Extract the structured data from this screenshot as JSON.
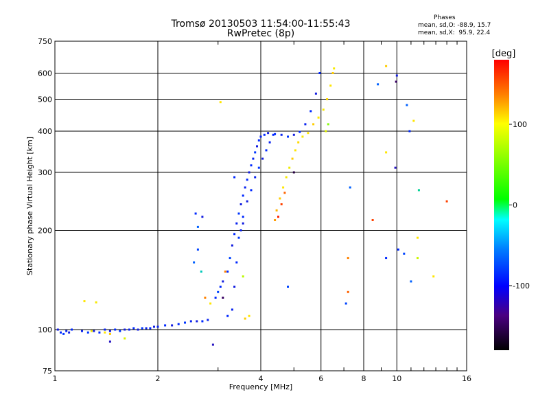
{
  "title_line1": "Tromsø 20130503 11:54:00-11:55:43",
  "title_line2": "RwPretec (8p)",
  "phases": {
    "title": "Phases",
    "mean_o": "mean, sd,O: -88.9, 15.7",
    "mean_x": "mean, sd,X:  95.9, 22.4"
  },
  "colorbar": {
    "label": "[deg]",
    "ticks": [
      {
        "value": 100,
        "label": "100"
      },
      {
        "value": 0,
        "label": "0"
      },
      {
        "value": -100,
        "label": "-100"
      }
    ],
    "range": [
      -180,
      180
    ]
  },
  "chart_data": {
    "type": "scatter",
    "title": "Tromsø 20130503 11:54:00-11:55:43",
    "subtitle": "RwPretec (8p)",
    "xlabel": "Frequency [MHz]",
    "ylabel": "Stationary phase Virtual Height [km]",
    "x_scale": "log",
    "y_scale": "log",
    "xlim": [
      1,
      16
    ],
    "ylim": [
      75,
      750
    ],
    "x_ticks": [
      1,
      2,
      4,
      6,
      8,
      10,
      16
    ],
    "x_tick_labels": [
      "1",
      "2",
      "4",
      "6",
      "8",
      "10",
      "16"
    ],
    "y_ticks": [
      75,
      100,
      200,
      300,
      400,
      500,
      600,
      750
    ],
    "y_tick_labels": [
      "75",
      "100",
      "200",
      "300",
      "400",
      "500",
      "600",
      "750"
    ],
    "grid": true,
    "color_scale": "phase [deg], rainbow from -180 (black) through -100 (blue), 0 (green), 100 (yellow) to 180 (red)",
    "points": [
      [
        1.02,
        100,
        -110
      ],
      [
        1.04,
        98,
        -100
      ],
      [
        1.06,
        97,
        -95
      ],
      [
        1.08,
        99,
        -105
      ],
      [
        1.1,
        98,
        -110
      ],
      [
        1.12,
        100,
        -100
      ],
      [
        1.2,
        99,
        -105
      ],
      [
        1.25,
        98,
        -95
      ],
      [
        1.3,
        99,
        -110
      ],
      [
        1.35,
        98,
        -100
      ],
      [
        1.4,
        100,
        -105
      ],
      [
        1.45,
        99,
        -110
      ],
      [
        1.5,
        100,
        -100
      ],
      [
        1.55,
        99,
        -95
      ],
      [
        1.6,
        100,
        -110
      ],
      [
        1.65,
        100,
        -105
      ],
      [
        1.7,
        101,
        -100
      ],
      [
        1.75,
        100,
        -110
      ],
      [
        1.8,
        101,
        -95
      ],
      [
        1.85,
        101,
        -105
      ],
      [
        1.9,
        101,
        -100
      ],
      [
        1.95,
        102,
        -110
      ],
      [
        2.0,
        102,
        -105
      ],
      [
        2.1,
        103,
        -100
      ],
      [
        2.2,
        103,
        -110
      ],
      [
        2.3,
        104,
        -100
      ],
      [
        2.4,
        105,
        -95
      ],
      [
        2.5,
        106,
        -105
      ],
      [
        2.6,
        106,
        -110
      ],
      [
        2.7,
        106,
        -100
      ],
      [
        2.8,
        107,
        -105
      ],
      [
        1.4,
        98,
        100
      ],
      [
        1.45,
        97,
        110
      ],
      [
        1.28,
        99,
        95
      ],
      [
        1.22,
        122,
        100
      ],
      [
        1.32,
        121,
        95
      ],
      [
        1.45,
        92,
        -120
      ],
      [
        1.6,
        94,
        80
      ],
      [
        2.55,
        160,
        -80
      ],
      [
        2.62,
        175,
        -90
      ],
      [
        2.58,
        225,
        -100
      ],
      [
        2.7,
        220,
        -110
      ],
      [
        2.62,
        205,
        -80
      ],
      [
        2.68,
        150,
        -30
      ],
      [
        2.75,
        125,
        140
      ],
      [
        2.85,
        120,
        100
      ],
      [
        2.95,
        125,
        -100
      ],
      [
        3.0,
        130,
        -90
      ],
      [
        3.05,
        135,
        -100
      ],
      [
        3.1,
        140,
        -110
      ],
      [
        3.2,
        150,
        -100
      ],
      [
        3.25,
        165,
        -90
      ],
      [
        3.3,
        180,
        -110
      ],
      [
        3.35,
        195,
        -100
      ],
      [
        3.4,
        210,
        -105
      ],
      [
        3.45,
        225,
        -95
      ],
      [
        3.5,
        240,
        -110
      ],
      [
        3.55,
        255,
        -100
      ],
      [
        3.6,
        270,
        -105
      ],
      [
        3.65,
        285,
        -100
      ],
      [
        3.7,
        300,
        -110
      ],
      [
        3.75,
        315,
        -100
      ],
      [
        3.8,
        330,
        -105
      ],
      [
        3.85,
        345,
        -95
      ],
      [
        3.9,
        360,
        -110
      ],
      [
        3.95,
        375,
        -100
      ],
      [
        4.0,
        385,
        -105
      ],
      [
        4.1,
        390,
        -100
      ],
      [
        4.2,
        395,
        -110
      ],
      [
        4.4,
        392,
        -100
      ],
      [
        4.6,
        390,
        -105
      ],
      [
        4.8,
        385,
        -95
      ],
      [
        5.0,
        390,
        -110
      ],
      [
        5.2,
        398,
        -100
      ],
      [
        5.4,
        420,
        -105
      ],
      [
        5.6,
        460,
        -100
      ],
      [
        5.8,
        520,
        -110
      ],
      [
        5.95,
        600,
        -100
      ],
      [
        3.2,
        110,
        -100
      ],
      [
        3.3,
        115,
        -105
      ],
      [
        3.35,
        135,
        -110
      ],
      [
        3.4,
        160,
        -100
      ],
      [
        3.45,
        190,
        -95
      ],
      [
        3.5,
        200,
        -105
      ],
      [
        3.55,
        220,
        -100
      ],
      [
        3.65,
        245,
        -110
      ],
      [
        3.75,
        265,
        -100
      ],
      [
        3.85,
        290,
        -105
      ],
      [
        3.95,
        310,
        -95
      ],
      [
        4.05,
        330,
        -110
      ],
      [
        4.15,
        350,
        -100
      ],
      [
        4.25,
        370,
        -105
      ],
      [
        4.35,
        390,
        -100
      ],
      [
        4.4,
        215,
        130
      ],
      [
        4.45,
        230,
        120
      ],
      [
        4.55,
        250,
        110
      ],
      [
        4.65,
        270,
        100
      ],
      [
        4.75,
        290,
        95
      ],
      [
        4.85,
        310,
        90
      ],
      [
        4.95,
        330,
        110
      ],
      [
        5.05,
        350,
        100
      ],
      [
        5.15,
        370,
        105
      ],
      [
        5.3,
        385,
        95
      ],
      [
        5.5,
        395,
        100
      ],
      [
        5.7,
        420,
        110
      ],
      [
        5.9,
        440,
        100
      ],
      [
        6.1,
        465,
        95
      ],
      [
        6.25,
        500,
        105
      ],
      [
        6.4,
        550,
        100
      ],
      [
        6.5,
        600,
        110
      ],
      [
        6.55,
        620,
        95
      ],
      [
        4.5,
        220,
        170
      ],
      [
        4.6,
        240,
        160
      ],
      [
        4.7,
        260,
        150
      ],
      [
        5.0,
        300,
        -160
      ],
      [
        6.2,
        400,
        80
      ],
      [
        6.3,
        420,
        40
      ],
      [
        3.6,
        108,
        110
      ],
      [
        3.7,
        110,
        100
      ],
      [
        3.55,
        145,
        60
      ],
      [
        3.15,
        150,
        140
      ],
      [
        3.1,
        125,
        -150
      ],
      [
        2.9,
        90,
        -120
      ],
      [
        3.05,
        490,
        100
      ],
      [
        3.35,
        290,
        -100
      ],
      [
        3.55,
        210,
        -110
      ],
      [
        4.8,
        135,
        -90
      ],
      [
        7.3,
        270,
        -80
      ],
      [
        7.2,
        165,
        140
      ],
      [
        7.2,
        130,
        150
      ],
      [
        7.1,
        120,
        -90
      ],
      [
        8.5,
        215,
        160
      ],
      [
        8.8,
        555,
        -80
      ],
      [
        9.3,
        630,
        110
      ],
      [
        9.3,
        345,
        100
      ],
      [
        9.3,
        165,
        -100
      ],
      [
        9.9,
        310,
        -120
      ],
      [
        10.1,
        175,
        -100
      ],
      [
        10.0,
        590,
        -110
      ],
      [
        9.95,
        565,
        -150
      ],
      [
        10.5,
        170,
        -90
      ],
      [
        10.7,
        480,
        -80
      ],
      [
        10.9,
        400,
        -100
      ],
      [
        11.2,
        430,
        100
      ],
      [
        11.5,
        190,
        100
      ],
      [
        11.5,
        165,
        70
      ],
      [
        11.6,
        265,
        -20
      ],
      [
        12.8,
        145,
        100
      ],
      [
        14.0,
        245,
        160
      ],
      [
        11.0,
        140,
        -80
      ]
    ]
  }
}
